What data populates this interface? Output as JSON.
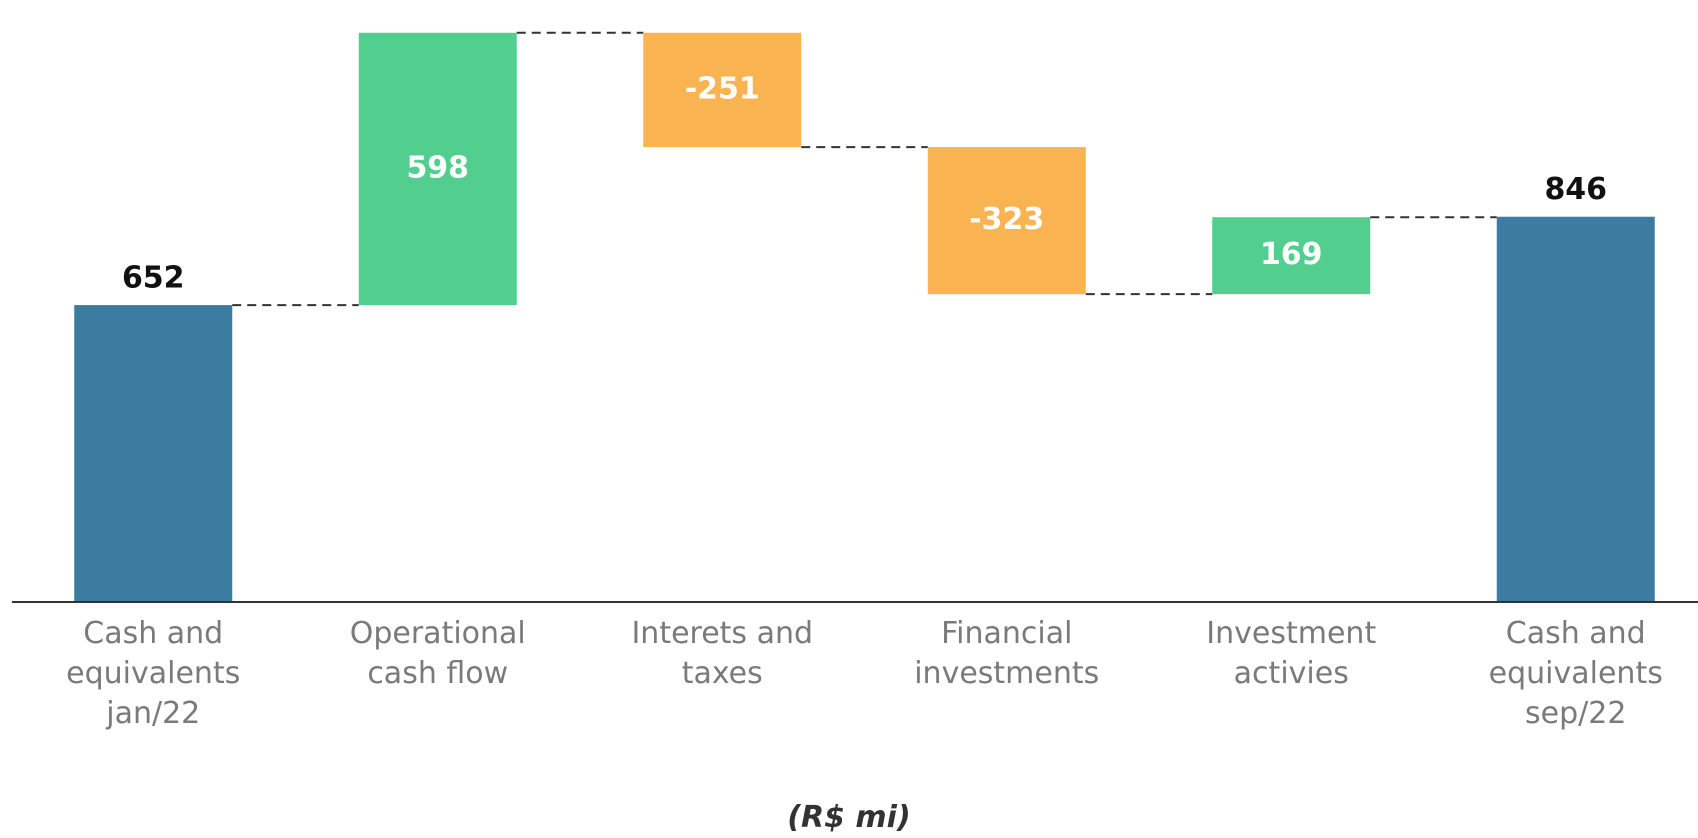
{
  "chart_data": {
    "type": "waterfall",
    "categories": [
      "Cash and equivalents jan/22",
      "Operational cash flow",
      "Interets and taxes",
      "Financial investments",
      "Investment activies",
      "Cash and equivalents sep/22"
    ],
    "values": [
      652,
      598,
      -251,
      -323,
      169,
      846
    ],
    "measures": [
      "total",
      "relative",
      "relative",
      "relative",
      "relative",
      "total"
    ],
    "colors": {
      "total": "#3b7ca0",
      "increase": "#52cf8f",
      "decrease": "#f9b351"
    },
    "ylim": [
      0,
      1300
    ],
    "unit_note": "(R$ mi)"
  }
}
